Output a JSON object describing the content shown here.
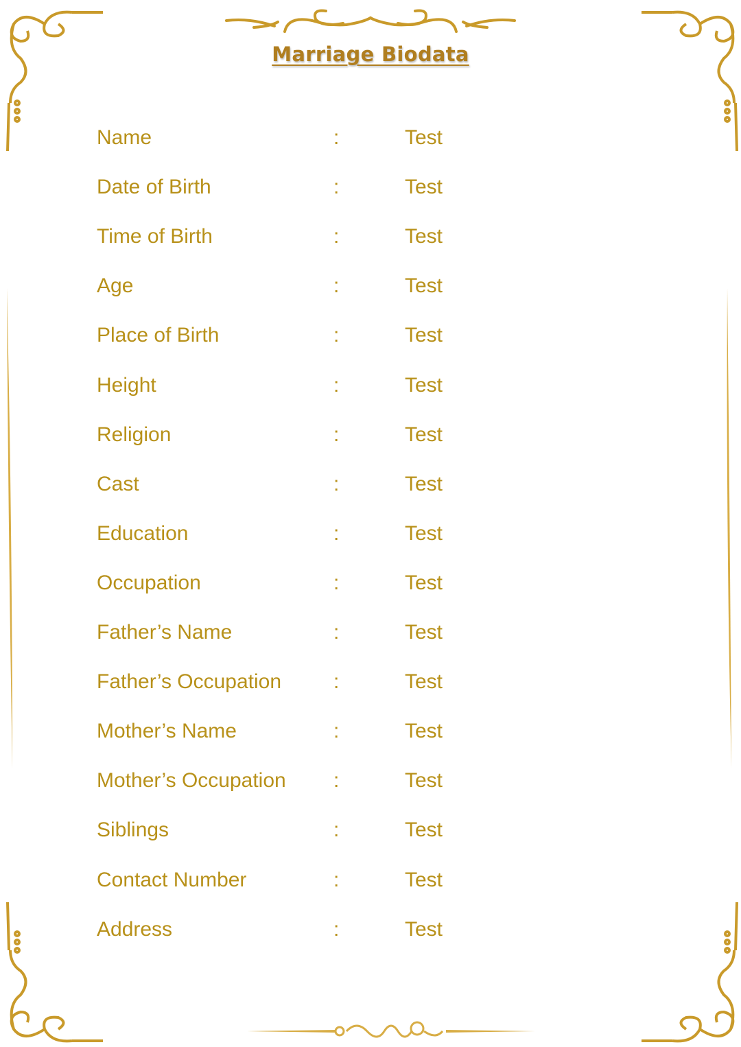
{
  "title": "Marriage Biodata",
  "colors": {
    "gold": "#b8911a",
    "title": "#b07e1f"
  },
  "separator": ":",
  "fields": [
    {
      "label": "Name",
      "value": "Test"
    },
    {
      "label": "Date of Birth",
      "value": "Test"
    },
    {
      "label": "Time of Birth",
      "value": "Test"
    },
    {
      "label": "Age",
      "value": "Test"
    },
    {
      "label": "Place of Birth",
      "value": "Test"
    },
    {
      "label": "Height",
      "value": "Test"
    },
    {
      "label": "Religion",
      "value": "Test"
    },
    {
      "label": "Cast",
      "value": "Test"
    },
    {
      "label": "Education",
      "value": "Test"
    },
    {
      "label": "Occupation",
      "value": "Test"
    },
    {
      "label": "Father’s Name",
      "value": "Test"
    },
    {
      "label": "Father’s Occupation",
      "value": "Test"
    },
    {
      "label": "Mother’s Name",
      "value": "Test"
    },
    {
      "label": "Mother’s Occupation",
      "value": "Test"
    },
    {
      "label": "Siblings",
      "value": "Test"
    },
    {
      "label": "Contact Number",
      "value": "Test"
    },
    {
      "label": "Address",
      "value": "Test"
    }
  ]
}
